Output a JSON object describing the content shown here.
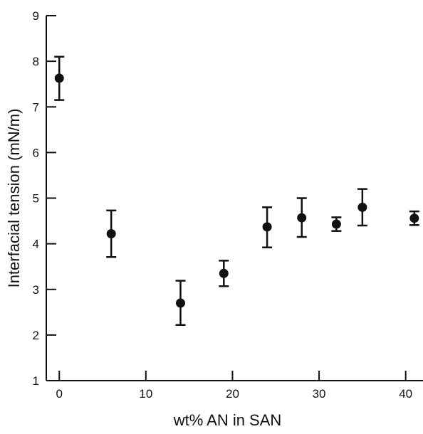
{
  "chart_data": {
    "type": "scatter",
    "title": "",
    "xlabel": "wt% AN in SAN",
    "ylabel": "Interfacial tension (mN/m)",
    "xlim": [
      -1.5,
      42
    ],
    "ylim": [
      1,
      9
    ],
    "x_ticks": [
      0,
      10,
      20,
      30,
      40
    ],
    "y_ticks": [
      1,
      2,
      3,
      4,
      5,
      6,
      7,
      8,
      9
    ],
    "grid": false,
    "legend": "none",
    "marker": "filled-circle",
    "colors": {
      "marker": "#111111",
      "axes": "#111111",
      "background": "#ffffff"
    },
    "series": [
      {
        "x": [
          0,
          6,
          14,
          19,
          24,
          28,
          32,
          35,
          41
        ],
        "y": [
          7.63,
          4.22,
          2.7,
          3.35,
          4.37,
          4.57,
          4.43,
          4.8,
          4.56
        ],
        "error_low": [
          0.48,
          0.51,
          0.48,
          0.28,
          0.45,
          0.42,
          0.15,
          0.4,
          0.15
        ],
        "error_high": [
          0.47,
          0.51,
          0.49,
          0.28,
          0.43,
          0.43,
          0.15,
          0.4,
          0.15
        ]
      }
    ]
  }
}
